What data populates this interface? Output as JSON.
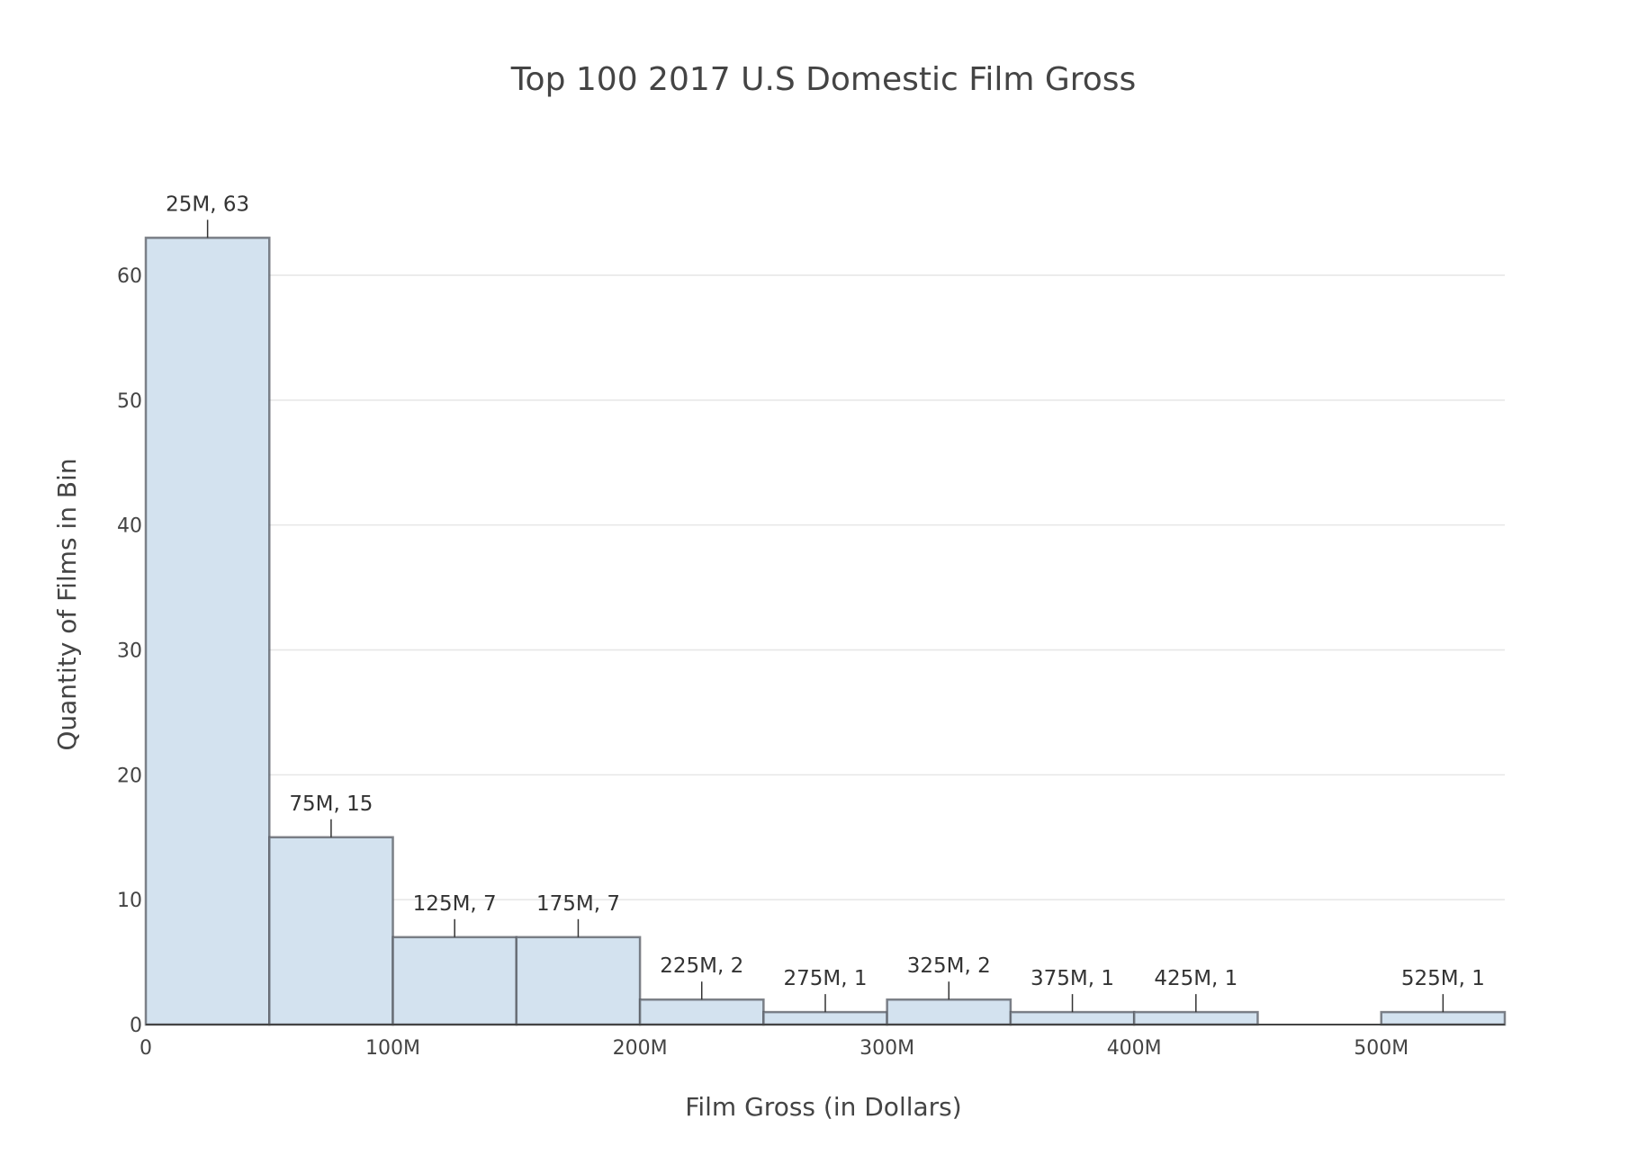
{
  "chart_data": {
    "type": "bar",
    "title": "Top 100 2017 U.S Domestic Film Gross",
    "xlabel": "Film Gross (in Dollars)",
    "ylabel": "Quantity of Films in Bin",
    "bin_width": 50,
    "x_unit": "M",
    "xlim": [
      0,
      550
    ],
    "ylim": [
      0,
      66
    ],
    "grid": true,
    "bars": [
      {
        "start": 0,
        "end": 50,
        "value": 63
      },
      {
        "start": 50,
        "end": 100,
        "value": 15
      },
      {
        "start": 100,
        "end": 150,
        "value": 7
      },
      {
        "start": 150,
        "end": 200,
        "value": 7
      },
      {
        "start": 200,
        "end": 250,
        "value": 2
      },
      {
        "start": 250,
        "end": 300,
        "value": 1
      },
      {
        "start": 300,
        "end": 350,
        "value": 2
      },
      {
        "start": 350,
        "end": 400,
        "value": 1
      },
      {
        "start": 400,
        "end": 450,
        "value": 1
      },
      {
        "start": 450,
        "end": 500,
        "value": 0
      },
      {
        "start": 500,
        "end": 550,
        "value": 1
      }
    ],
    "annotations": [
      {
        "x": 25,
        "y": 63,
        "text": "25M, 63"
      },
      {
        "x": 75,
        "y": 15,
        "text": "75M, 15"
      },
      {
        "x": 125,
        "y": 7,
        "text": "125M, 7"
      },
      {
        "x": 175,
        "y": 7,
        "text": "175M, 7"
      },
      {
        "x": 225,
        "y": 2,
        "text": "225M, 2"
      },
      {
        "x": 275,
        "y": 1,
        "text": "275M, 1"
      },
      {
        "x": 325,
        "y": 2,
        "text": "325M, 2"
      },
      {
        "x": 375,
        "y": 1,
        "text": "375M, 1"
      },
      {
        "x": 425,
        "y": 1,
        "text": "425M, 1"
      },
      {
        "x": 525,
        "y": 1,
        "text": "525M, 1"
      }
    ],
    "x_ticks": [
      {
        "value": 0,
        "label": "0"
      },
      {
        "value": 100,
        "label": "100M"
      },
      {
        "value": 200,
        "label": "200M"
      },
      {
        "value": 300,
        "label": "300M"
      },
      {
        "value": 400,
        "label": "400M"
      },
      {
        "value": 500,
        "label": "500M"
      }
    ],
    "y_ticks": [
      {
        "value": 0,
        "label": "0"
      },
      {
        "value": 10,
        "label": "10"
      },
      {
        "value": 20,
        "label": "20"
      },
      {
        "value": 30,
        "label": "30"
      },
      {
        "value": 40,
        "label": "40"
      },
      {
        "value": 50,
        "label": "50"
      },
      {
        "value": 60,
        "label": "60"
      }
    ],
    "colors": {
      "bar_fill": "#d3e2ef",
      "bar_outline": "#555a61",
      "grid": "#e6e6e6",
      "text": "#444444"
    }
  }
}
